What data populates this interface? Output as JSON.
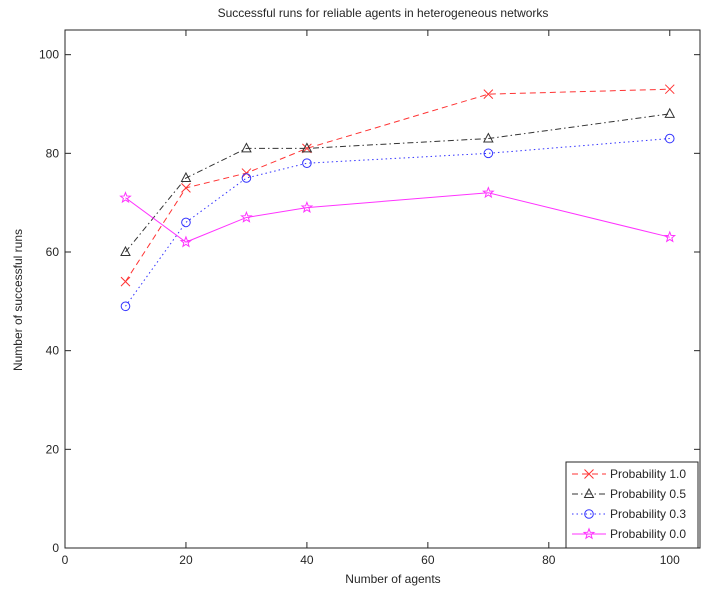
{
  "chart_data": {
    "type": "line",
    "title": "Successful runs for reliable agents in heterogeneous networks",
    "xlabel": "Number of agents",
    "ylabel": "Number of successful runs",
    "xlim": [
      0,
      105
    ],
    "ylim": [
      0,
      105
    ],
    "xticks": [
      0,
      20,
      40,
      60,
      80,
      100
    ],
    "yticks": [
      0,
      20,
      40,
      60,
      80,
      100
    ],
    "grid": false,
    "legend_position": "bottom-right",
    "x": [
      10,
      20,
      30,
      40,
      70,
      100
    ],
    "series": [
      {
        "name": "Probability 1.0",
        "values": [
          54,
          73,
          76,
          81,
          92,
          93
        ],
        "color": "#ff3333",
        "line_style": "dashed",
        "marker": "x"
      },
      {
        "name": "Probability 0.5",
        "values": [
          60,
          75,
          81,
          81,
          83,
          88
        ],
        "color": "#333333",
        "line_style": "dash-dot",
        "marker": "triangle"
      },
      {
        "name": "Probability 0.3",
        "values": [
          49,
          66,
          75,
          78,
          80,
          83
        ],
        "color": "#3333ff",
        "line_style": "dotted",
        "marker": "circle"
      },
      {
        "name": "Probability 0.0",
        "values": [
          71,
          62,
          67,
          69,
          72,
          63
        ],
        "color": "#ff33ff",
        "line_style": "solid",
        "marker": "star"
      }
    ]
  }
}
